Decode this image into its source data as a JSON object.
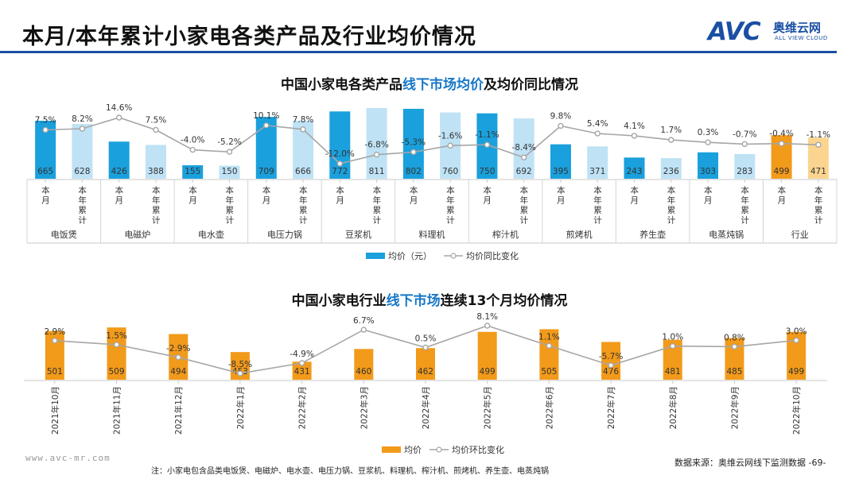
{
  "header": {
    "title": "本月/本年累计小家电各类产品及行业均价情况",
    "logo_text": "AVC",
    "logo_cn": "奥维云网",
    "logo_en": "ALL VIEW CLOUD"
  },
  "footer": {
    "url": "www.avc-mr.com",
    "note": "注：小家电包含品类电饭煲、电磁炉、电水壶、电压力锅、豆浆机、料理机、榨汁机、煎烤机、养生壶、电蒸炖锅",
    "source": "数据来源：奥维云网线下监测数据",
    "page": "-69-"
  },
  "colors": {
    "blue": "#1aa0dc",
    "light_blue": "#bfe2f5",
    "orange": "#f29a1a",
    "light_orange": "#fbd58f",
    "line": "#a6a6a6",
    "accent_text": "#1677c8"
  },
  "chart_data": [
    {
      "type": "bar",
      "title_prefix": "中国小家电各类产品",
      "title_highlight": "线下市场均价",
      "title_suffix": "及均价同比情况",
      "groups": [
        "电饭煲",
        "电磁炉",
        "电水壶",
        "电压力锅",
        "豆浆机",
        "料理机",
        "榨汁机",
        "煎烤机",
        "养生壶",
        "电蒸炖锅",
        "行业"
      ],
      "bar_labels": [
        "本月",
        "本年累计"
      ],
      "series": [
        {
          "name": "均价（元）",
          "values": [
            665,
            628,
            426,
            388,
            155,
            150,
            709,
            666,
            772,
            811,
            802,
            760,
            750,
            692,
            395,
            371,
            243,
            236,
            303,
            283,
            499,
            471
          ]
        },
        {
          "name": "均价同比变化",
          "values": [
            "7.5%",
            "8.2%",
            "14.6%",
            "7.5%",
            "-4.0%",
            "-5.2%",
            "10.1%",
            "7.8%",
            "-12.0%",
            "-6.8%",
            "-5.3%",
            "-1.6%",
            "-1.1%",
            "-8.4%",
            "9.8%",
            "5.4%",
            "4.1%",
            "1.7%",
            "0.3%",
            "-0.7%",
            "-0.4%",
            "-1.1%"
          ]
        }
      ],
      "ylim": [
        0,
        900
      ]
    },
    {
      "type": "bar",
      "title_prefix": "中国小家电行业",
      "title_highlight": "线下市场",
      "title_suffix": "连续13个月均价情况",
      "categories": [
        "2021年10月",
        "2021年11月",
        "2021年12月",
        "2022年1月",
        "2022年2月",
        "2022年3月",
        "2022年4月",
        "2022年5月",
        "2022年6月",
        "2022年7月",
        "2022年8月",
        "2022年9月",
        "2022年10月"
      ],
      "series": [
        {
          "name": "均价",
          "values": [
            501,
            509,
            494,
            453,
            431,
            460,
            462,
            499,
            505,
            476,
            481,
            485,
            499
          ]
        },
        {
          "name": "均价环比变化",
          "values": [
            "2.9%",
            "1.5%",
            "-2.9%",
            "-8.5%",
            "-4.9%",
            "6.7%",
            "0.5%",
            "8.1%",
            "1.1%",
            "-5.7%",
            "1.0%",
            "0.8%",
            "3.0%"
          ]
        }
      ],
      "ylim": [
        0,
        560
      ]
    }
  ]
}
